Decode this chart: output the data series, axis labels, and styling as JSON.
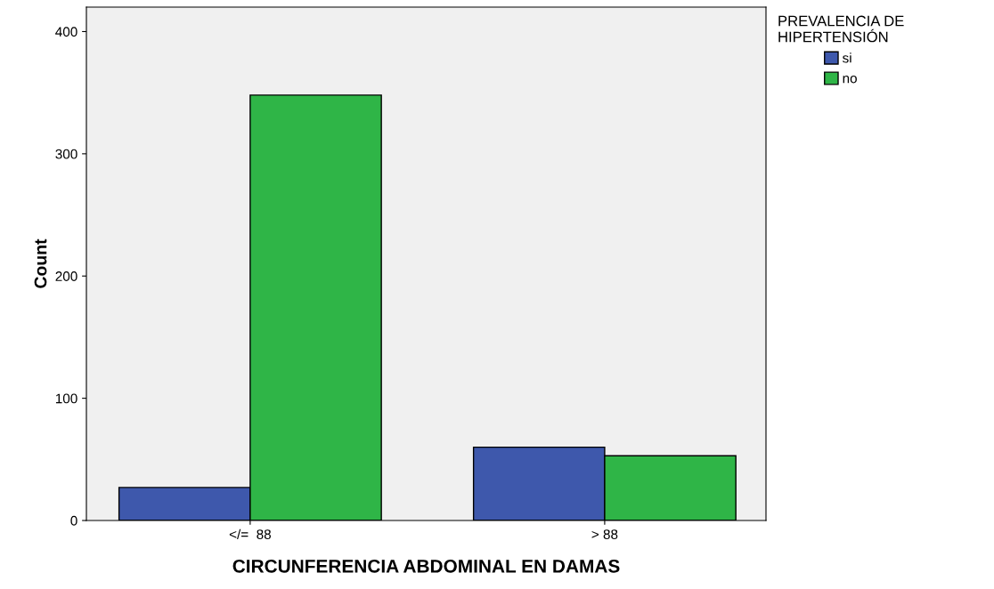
{
  "chart_data": {
    "type": "bar",
    "xlabel": "CIRCUNFERENCIA ABDOMINAL EN DAMAS",
    "ylabel": "Count",
    "legend_title": "PREVALENCIA DE\nHIPERTENSIÓN",
    "categories": [
      "</=  88",
      "> 88"
    ],
    "series": [
      {
        "name": "si",
        "color": "#3e58ac",
        "values": [
          27,
          60
        ]
      },
      {
        "name": "no",
        "color": "#2fb547",
        "values": [
          348,
          53
        ]
      }
    ],
    "ylim": [
      0,
      420
    ],
    "yticks": [
      0,
      100,
      200,
      300,
      400
    ],
    "grid": false,
    "legend": "top right"
  }
}
